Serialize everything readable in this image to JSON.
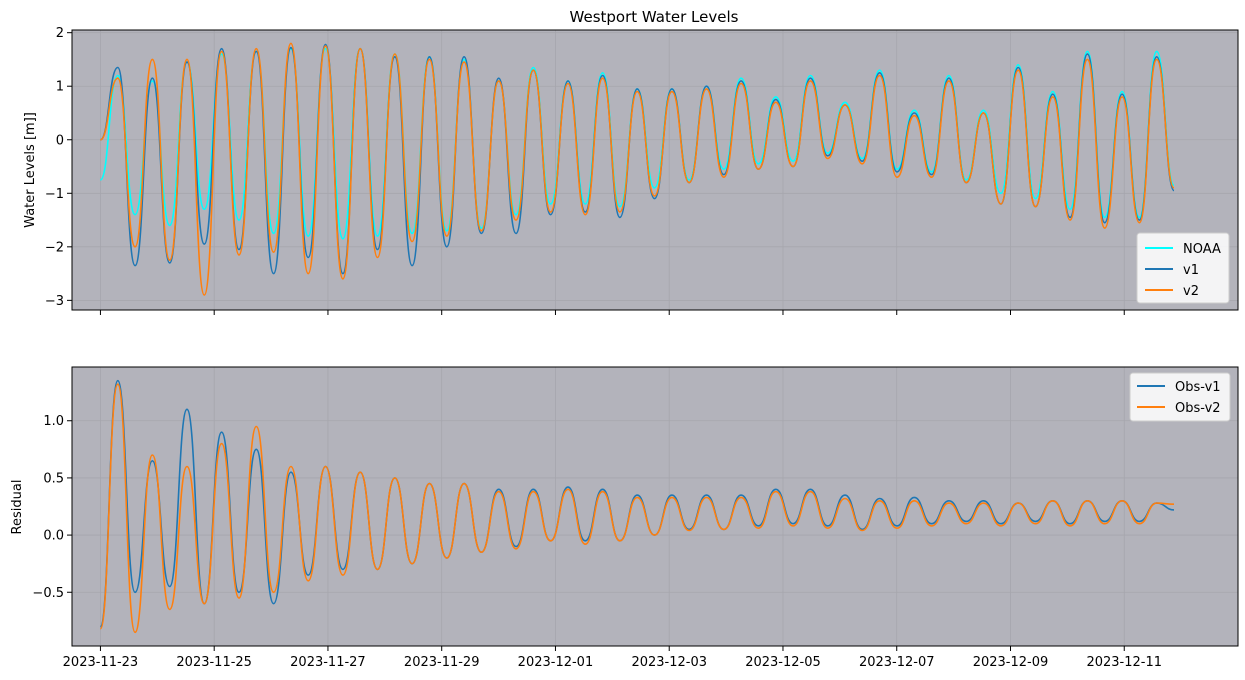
{
  "figure": {
    "title": "Westport Water Levels"
  },
  "chart_data": [
    {
      "type": "line",
      "title": "Westport Water Levels",
      "xlabel": "",
      "ylabel": "Water Levels [m]]",
      "x_range": [
        "2023-11-22T12:00",
        "2023-12-13T00:00"
      ],
      "ylim": [
        -3.18,
        2.05
      ],
      "y_ticks": [
        2,
        1,
        0,
        -1,
        -2,
        -3
      ],
      "y_tick_labels": [
        "2",
        "1",
        "0",
        "−1",
        "−2",
        "−3"
      ],
      "x_tick_dates": [
        "2023-11-23",
        "2023-11-25",
        "2023-11-27",
        "2023-11-29",
        "2023-12-01",
        "2023-12-03",
        "2023-12-05",
        "2023-12-07",
        "2023-12-09",
        "2023-12-11"
      ],
      "grid": true,
      "legend_position": "lower-right",
      "series": [
        {
          "name": "NOAA",
          "color": "#00ffff",
          "start": "2023-11-23T00:00",
          "end": "2023-12-11T21:00",
          "values": [
            -0.75,
            1.2,
            -1.4,
            1.1,
            -1.6,
            1.45,
            -1.3,
            1.6,
            -1.5,
            1.65,
            -1.75,
            1.7,
            -1.8,
            1.7,
            -1.85,
            1.7,
            -1.8,
            1.6,
            -1.75,
            1.55,
            -1.7,
            1.5,
            -1.65,
            1.1,
            -1.4,
            1.35,
            -1.2,
            1.1,
            -1.2,
            1.25,
            -1.25,
            0.95,
            -0.9,
            0.95,
            -0.75,
            1.0,
            -0.55,
            1.15,
            -0.45,
            0.8,
            -0.4,
            1.2,
            -0.25,
            0.7,
            -0.35,
            1.3,
            -0.55,
            0.55,
            -0.6,
            1.2,
            -0.75,
            0.55,
            -1.0,
            1.4,
            -1.1,
            0.9,
            -1.3,
            1.65,
            -1.45,
            0.9,
            -1.45,
            1.65,
            -0.85
          ]
        },
        {
          "name": "v1",
          "color": "#1f77b4",
          "start": "2023-11-23T00:00",
          "end": "2023-12-11T21:00",
          "values": [
            0.0,
            1.35,
            -2.35,
            1.15,
            -2.3,
            1.45,
            -1.95,
            1.7,
            -2.05,
            1.65,
            -2.5,
            1.72,
            -2.2,
            1.78,
            -2.5,
            1.7,
            -2.05,
            1.55,
            -2.35,
            1.55,
            -2.0,
            1.55,
            -1.75,
            1.15,
            -1.75,
            1.3,
            -1.4,
            1.1,
            -1.35,
            1.2,
            -1.45,
            0.95,
            -1.1,
            0.95,
            -0.8,
            1.0,
            -0.65,
            1.1,
            -0.55,
            0.75,
            -0.5,
            1.15,
            -0.3,
            0.65,
            -0.4,
            1.25,
            -0.6,
            0.5,
            -0.65,
            1.15,
            -0.8,
            0.5,
            -1.2,
            1.35,
            -1.25,
            0.85,
            -1.45,
            1.6,
            -1.55,
            0.85,
            -1.5,
            1.55,
            -0.95
          ]
        },
        {
          "name": "v2",
          "color": "#ff7f0e",
          "start": "2023-11-23T00:00",
          "end": "2023-12-11T21:00",
          "values": [
            0.0,
            1.15,
            -2.0,
            1.5,
            -2.25,
            1.5,
            -2.9,
            1.65,
            -2.15,
            1.7,
            -2.1,
            1.8,
            -2.5,
            1.75,
            -2.6,
            1.7,
            -2.2,
            1.6,
            -1.9,
            1.5,
            -1.8,
            1.45,
            -1.7,
            1.1,
            -1.5,
            1.3,
            -1.35,
            1.05,
            -1.4,
            1.15,
            -1.35,
            0.9,
            -1.05,
            0.9,
            -0.8,
            0.95,
            -0.7,
            1.05,
            -0.55,
            0.7,
            -0.5,
            1.1,
            -0.35,
            0.65,
            -0.45,
            1.2,
            -0.7,
            0.45,
            -0.7,
            1.1,
            -0.8,
            0.5,
            -1.2,
            1.3,
            -1.25,
            0.8,
            -1.5,
            1.5,
            -1.65,
            0.8,
            -1.55,
            1.5,
            -0.9
          ]
        }
      ]
    },
    {
      "type": "line",
      "title": "",
      "xlabel": "",
      "ylabel": "Residual",
      "x_range": [
        "2023-11-22T12:00",
        "2023-12-13T00:00"
      ],
      "ylim": [
        -0.97,
        1.47
      ],
      "y_ticks": [
        1.0,
        0.5,
        0.0,
        -0.5
      ],
      "y_tick_labels": [
        "1.0",
        "0.5",
        "0.0",
        "−0.5"
      ],
      "x_tick_dates": [
        "2023-11-23",
        "2023-11-25",
        "2023-11-27",
        "2023-11-29",
        "2023-12-01",
        "2023-12-03",
        "2023-12-05",
        "2023-12-07",
        "2023-12-09",
        "2023-12-11"
      ],
      "x_tick_labels": [
        "2023-11-23",
        "2023-11-25",
        "2023-11-27",
        "2023-11-29",
        "2023-12-01",
        "2023-12-03",
        "2023-12-05",
        "2023-12-07",
        "2023-12-09",
        "2023-12-11"
      ],
      "grid": true,
      "legend_position": "upper-right",
      "series": [
        {
          "name": "Obs-v1",
          "color": "#1f77b4",
          "start": "2023-11-23T00:00",
          "end": "2023-12-11T21:00",
          "values": [
            -0.8,
            1.35,
            -0.5,
            0.65,
            -0.45,
            1.1,
            -0.6,
            0.9,
            -0.5,
            0.75,
            -0.6,
            0.55,
            -0.35,
            0.6,
            -0.3,
            0.55,
            -0.3,
            0.5,
            -0.25,
            0.45,
            -0.2,
            0.45,
            -0.15,
            0.4,
            -0.1,
            0.4,
            -0.05,
            0.42,
            -0.05,
            0.4,
            -0.05,
            0.35,
            0.0,
            0.35,
            0.05,
            0.35,
            0.05,
            0.35,
            0.08,
            0.4,
            0.1,
            0.4,
            0.08,
            0.35,
            0.05,
            0.32,
            0.08,
            0.33,
            0.1,
            0.3,
            0.12,
            0.3,
            0.1,
            0.28,
            0.12,
            0.3,
            0.1,
            0.3,
            0.12,
            0.3,
            0.12,
            0.28,
            0.22
          ]
        },
        {
          "name": "Obs-v2",
          "color": "#ff7f0e",
          "start": "2023-11-23T00:00",
          "end": "2023-12-11T21:00",
          "values": [
            -0.82,
            1.32,
            -0.85,
            0.7,
            -0.65,
            0.6,
            -0.6,
            0.8,
            -0.55,
            0.95,
            -0.5,
            0.6,
            -0.4,
            0.6,
            -0.35,
            0.55,
            -0.3,
            0.5,
            -0.25,
            0.45,
            -0.2,
            0.45,
            -0.15,
            0.38,
            -0.12,
            0.38,
            -0.05,
            0.4,
            -0.08,
            0.38,
            -0.05,
            0.33,
            0.0,
            0.33,
            0.04,
            0.33,
            0.05,
            0.33,
            0.06,
            0.38,
            0.08,
            0.38,
            0.06,
            0.32,
            0.04,
            0.3,
            0.06,
            0.3,
            0.08,
            0.28,
            0.1,
            0.28,
            0.08,
            0.28,
            0.1,
            0.3,
            0.08,
            0.3,
            0.1,
            0.3,
            0.1,
            0.28,
            0.27
          ]
        }
      ]
    }
  ]
}
